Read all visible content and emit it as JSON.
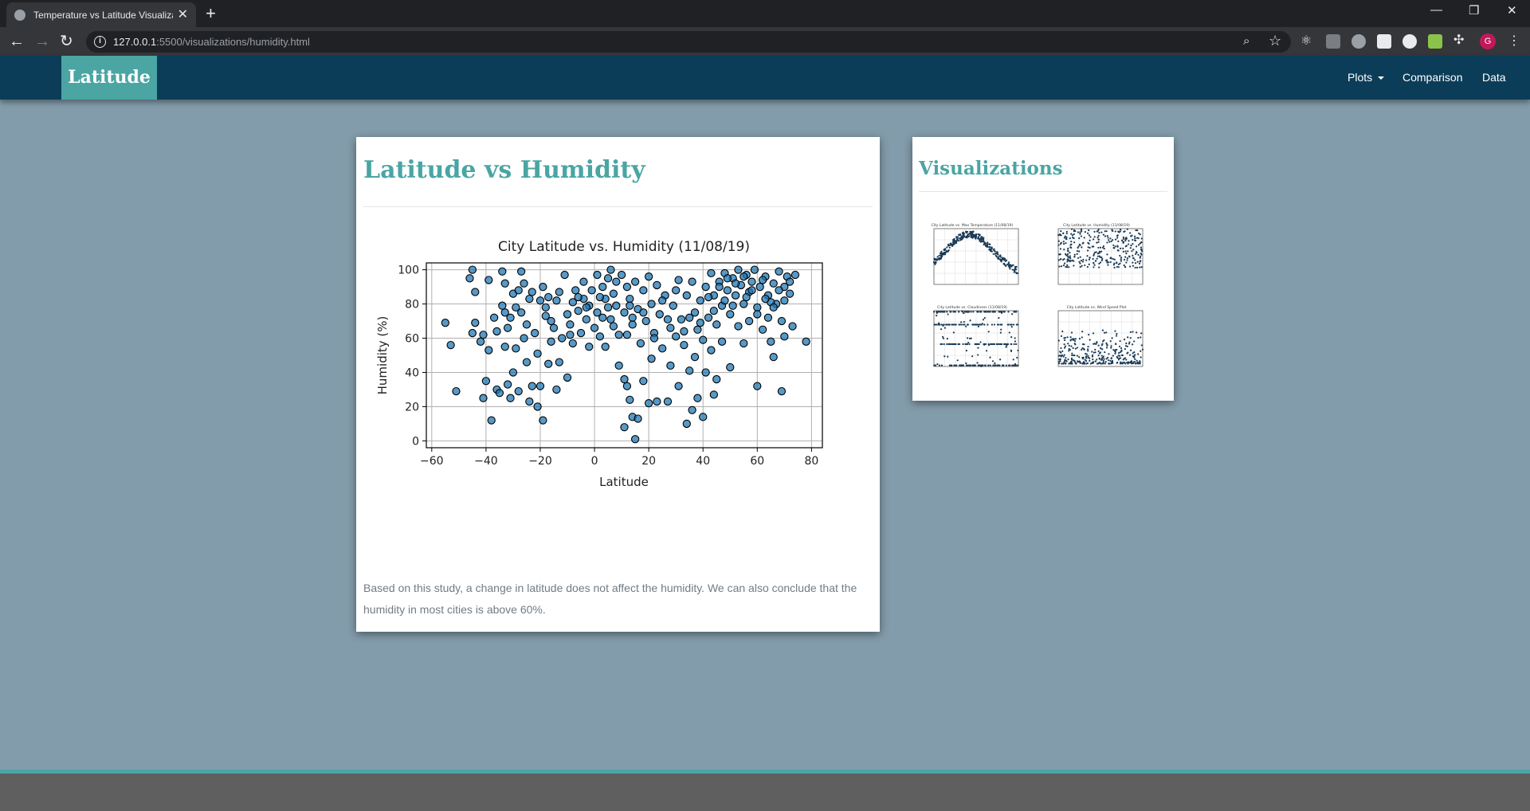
{
  "browser": {
    "tab_title": "Temperature vs Latitude Visualiza",
    "tab_close": "✕",
    "new_tab": "+",
    "url_host": "127.0.0.1",
    "url_rest": ":5500/visualizations/humidity.html",
    "info_glyph": "i",
    "profile_initial": "G",
    "back": "←",
    "forward": "→",
    "reload": "↻",
    "minimize": "—",
    "restore": "❐",
    "close": "✕"
  },
  "navbar": {
    "brand": "Latitude",
    "links": {
      "plots": "Plots",
      "comparison": "Comparison",
      "data": "Data"
    }
  },
  "main": {
    "title": "Latitude vs Humidity",
    "description": "Based on this study, a change in latitude does not affect the humidity. We can also conclude that the humidity in most cities is above 60%."
  },
  "sidebar": {
    "title": "Visualizations",
    "thumbnails": [
      {
        "name": "max-temperature",
        "title": "City Latitude vs. Max Temperature (11/08/19)"
      },
      {
        "name": "humidity",
        "title": "City Latitude vs. Humidity (11/08/19)"
      },
      {
        "name": "cloudiness",
        "title": "City Latitude vs. Cloudiness (11/08/19)"
      },
      {
        "name": "wind-speed",
        "title": "City Latitude vs. Wind Speed Plot"
      }
    ]
  },
  "chart_data": {
    "type": "scatter",
    "title": "City Latitude vs. Humidity (11/08/19)",
    "xlabel": "Latitude",
    "ylabel": "Humidity (%)",
    "xlim": [
      -62,
      84
    ],
    "ylim": [
      -4,
      104
    ],
    "xticks": [
      -60,
      -40,
      -20,
      0,
      20,
      40,
      60,
      80
    ],
    "yticks": [
      0,
      20,
      40,
      60,
      80,
      100
    ],
    "grid": true,
    "marker_color": "#1f77b4",
    "points": [
      [
        -55,
        69
      ],
      [
        -53,
        56
      ],
      [
        -51,
        29
      ],
      [
        -46,
        95
      ],
      [
        -45,
        100
      ],
      [
        -45,
        63
      ],
      [
        -44,
        87
      ],
      [
        -44,
        69
      ],
      [
        -42,
        58
      ],
      [
        -41,
        62
      ],
      [
        -41,
        25
      ],
      [
        -40,
        35
      ],
      [
        -39,
        94
      ],
      [
        -38,
        12
      ],
      [
        -37,
        72
      ],
      [
        -36,
        30
      ],
      [
        -35,
        28
      ],
      [
        -34,
        99
      ],
      [
        -34,
        79
      ],
      [
        -33,
        92
      ],
      [
        -33,
        75
      ],
      [
        -33,
        55
      ],
      [
        -32,
        66
      ],
      [
        -32,
        33
      ],
      [
        -31,
        25
      ],
      [
        -30,
        86
      ],
      [
        -30,
        40
      ],
      [
        -29,
        78
      ],
      [
        -29,
        54
      ],
      [
        -28,
        29
      ],
      [
        -27,
        75
      ],
      [
        -27,
        99
      ],
      [
        -26,
        92
      ],
      [
        -25,
        68
      ],
      [
        -25,
        46
      ],
      [
        -24,
        23
      ],
      [
        -23,
        87
      ],
      [
        -23,
        32
      ],
      [
        -22,
        63
      ],
      [
        -21,
        20
      ],
      [
        -21,
        51
      ],
      [
        -20,
        82
      ],
      [
        -20,
        32
      ],
      [
        -19,
        90
      ],
      [
        -19,
        12
      ],
      [
        -18,
        73
      ],
      [
        -17,
        84
      ],
      [
        -17,
        45
      ],
      [
        -16,
        58
      ],
      [
        -15,
        66
      ],
      [
        -14,
        30
      ],
      [
        -13,
        87
      ],
      [
        -13,
        46
      ],
      [
        -12,
        60
      ],
      [
        -11,
        97
      ],
      [
        -10,
        74
      ],
      [
        -10,
        37
      ],
      [
        -9,
        68
      ],
      [
        -8,
        81
      ],
      [
        -8,
        57
      ],
      [
        -7,
        88
      ],
      [
        -6,
        76
      ],
      [
        -5,
        63
      ],
      [
        -4,
        93
      ],
      [
        -4,
        83
      ],
      [
        -3,
        71
      ],
      [
        -2,
        79
      ],
      [
        -1,
        88
      ],
      [
        0,
        66
      ],
      [
        1,
        97
      ],
      [
        1,
        75
      ],
      [
        2,
        61
      ],
      [
        3,
        90
      ],
      [
        4,
        83
      ],
      [
        4,
        55
      ],
      [
        5,
        95
      ],
      [
        6,
        71
      ],
      [
        6,
        100
      ],
      [
        7,
        86
      ],
      [
        8,
        79
      ],
      [
        9,
        62
      ],
      [
        9,
        44
      ],
      [
        10,
        97
      ],
      [
        11,
        75
      ],
      [
        11,
        36
      ],
      [
        11,
        8
      ],
      [
        12,
        90
      ],
      [
        12,
        62
      ],
      [
        12,
        32
      ],
      [
        13,
        83
      ],
      [
        13,
        24
      ],
      [
        14,
        68
      ],
      [
        14,
        14
      ],
      [
        15,
        93
      ],
      [
        15,
        1
      ],
      [
        16,
        77
      ],
      [
        16,
        13
      ],
      [
        17,
        57
      ],
      [
        18,
        88
      ],
      [
        18,
        35
      ],
      [
        19,
        70
      ],
      [
        20,
        96
      ],
      [
        20,
        22
      ],
      [
        21,
        80
      ],
      [
        21,
        48
      ],
      [
        22,
        63
      ],
      [
        23,
        91
      ],
      [
        23,
        23
      ],
      [
        24,
        74
      ],
      [
        25,
        54
      ],
      [
        26,
        85
      ],
      [
        27,
        23
      ],
      [
        28,
        66
      ],
      [
        28,
        44
      ],
      [
        29,
        79
      ],
      [
        30,
        61
      ],
      [
        31,
        94
      ],
      [
        31,
        32
      ],
      [
        32,
        71
      ],
      [
        33,
        56
      ],
      [
        34,
        10
      ],
      [
        34,
        85
      ],
      [
        35,
        41
      ],
      [
        35,
        72
      ],
      [
        36,
        93
      ],
      [
        36,
        18
      ],
      [
        37,
        49
      ],
      [
        38,
        65
      ],
      [
        38,
        25
      ],
      [
        39,
        82
      ],
      [
        40,
        59
      ],
      [
        40,
        14
      ],
      [
        41,
        90
      ],
      [
        41,
        40
      ],
      [
        42,
        72
      ],
      [
        43,
        98
      ],
      [
        43,
        53
      ],
      [
        44,
        27
      ],
      [
        44,
        85
      ],
      [
        45,
        68
      ],
      [
        45,
        36
      ],
      [
        46,
        93
      ],
      [
        47,
        79
      ],
      [
        47,
        58
      ],
      [
        48,
        98
      ],
      [
        49,
        88
      ],
      [
        50,
        74
      ],
      [
        50,
        43
      ],
      [
        51,
        95
      ],
      [
        52,
        85
      ],
      [
        53,
        67
      ],
      [
        53,
        100
      ],
      [
        54,
        91
      ],
      [
        55,
        80
      ],
      [
        55,
        57
      ],
      [
        56,
        97
      ],
      [
        57,
        70
      ],
      [
        57,
        87
      ],
      [
        58,
        93
      ],
      [
        59,
        100
      ],
      [
        60,
        32
      ],
      [
        60,
        78
      ],
      [
        61,
        90
      ],
      [
        62,
        65
      ],
      [
        63,
        96
      ],
      [
        64,
        85
      ],
      [
        64,
        72
      ],
      [
        65,
        58
      ],
      [
        66,
        92
      ],
      [
        66,
        49
      ],
      [
        67,
        80
      ],
      [
        68,
        99
      ],
      [
        69,
        29
      ],
      [
        69,
        70
      ],
      [
        70,
        61
      ],
      [
        70,
        90
      ],
      [
        71,
        96
      ],
      [
        72,
        86
      ],
      [
        73,
        67
      ],
      [
        74,
        97
      ],
      [
        78,
        58
      ],
      [
        -36,
        64
      ],
      [
        -28,
        88
      ],
      [
        -24,
        83
      ],
      [
        -18,
        78
      ],
      [
        -14,
        82
      ],
      [
        -6,
        84
      ],
      [
        -3,
        78
      ],
      [
        2,
        84
      ],
      [
        5,
        78
      ],
      [
        8,
        93
      ],
      [
        13,
        79
      ],
      [
        18,
        75
      ],
      [
        25,
        82
      ],
      [
        30,
        88
      ],
      [
        37,
        75
      ],
      [
        42,
        84
      ],
      [
        46,
        90
      ],
      [
        49,
        95
      ],
      [
        52,
        92
      ],
      [
        55,
        96
      ],
      [
        58,
        88
      ],
      [
        62,
        94
      ],
      [
        65,
        81
      ],
      [
        68,
        88
      ],
      [
        72,
        93
      ],
      [
        -39,
        53
      ],
      [
        -31,
        72
      ],
      [
        -26,
        60
      ],
      [
        -16,
        70
      ],
      [
        -9,
        62
      ],
      [
        -2,
        55
      ],
      [
        3,
        72
      ],
      [
        7,
        67
      ],
      [
        14,
        72
      ],
      [
        22,
        60
      ],
      [
        27,
        71
      ],
      [
        33,
        64
      ],
      [
        39,
        69
      ],
      [
        44,
        76
      ],
      [
        48,
        82
      ],
      [
        51,
        79
      ],
      [
        56,
        84
      ],
      [
        60,
        74
      ],
      [
        63,
        83
      ],
      [
        66,
        78
      ],
      [
        70,
        82
      ]
    ]
  }
}
